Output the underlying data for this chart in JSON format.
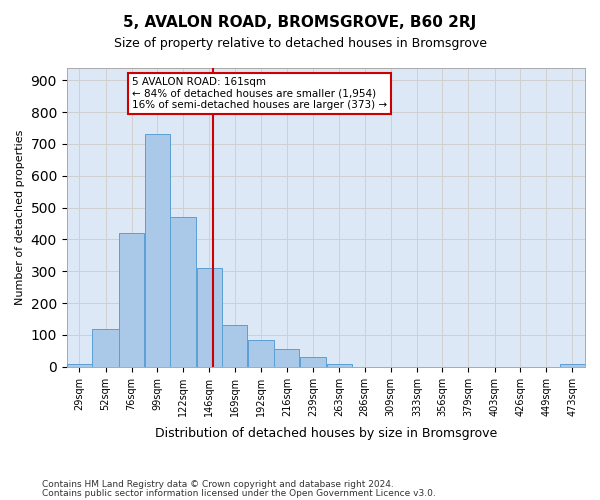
{
  "title": "5, AVALON ROAD, BROMSGROVE, B60 2RJ",
  "subtitle": "Size of property relative to detached houses in Bromsgrove",
  "xlabel": "Distribution of detached houses by size in Bromsgrove",
  "ylabel": "Number of detached properties",
  "footnote1": "Contains HM Land Registry data © Crown copyright and database right 2024.",
  "footnote2": "Contains public sector information licensed under the Open Government Licence v3.0.",
  "bar_edges": [
    29,
    52,
    76,
    99,
    122,
    146,
    169,
    192,
    216,
    239,
    263,
    286,
    309,
    333,
    356,
    379,
    403,
    426,
    449,
    473,
    496
  ],
  "bar_heights": [
    10,
    120,
    420,
    730,
    470,
    310,
    130,
    85,
    55,
    30,
    10,
    0,
    0,
    0,
    0,
    0,
    0,
    0,
    0,
    10
  ],
  "bar_color": "#aac8e8",
  "bar_edge_color": "#5a9fd4",
  "property_size": 161,
  "vline_color": "#cc0000",
  "annotation_text": "5 AVALON ROAD: 161sqm\n← 84% of detached houses are smaller (1,954)\n16% of semi-detached houses are larger (373) →",
  "annotation_box_color": "#ffffff",
  "annotation_box_edge": "#cc0000",
  "ylim": [
    0,
    940
  ],
  "yticks": [
    0,
    100,
    200,
    300,
    400,
    500,
    600,
    700,
    800,
    900
  ],
  "grid_color": "#d0d0d0",
  "plot_bg": "#dce8f5",
  "fig_bg": "#ffffff"
}
